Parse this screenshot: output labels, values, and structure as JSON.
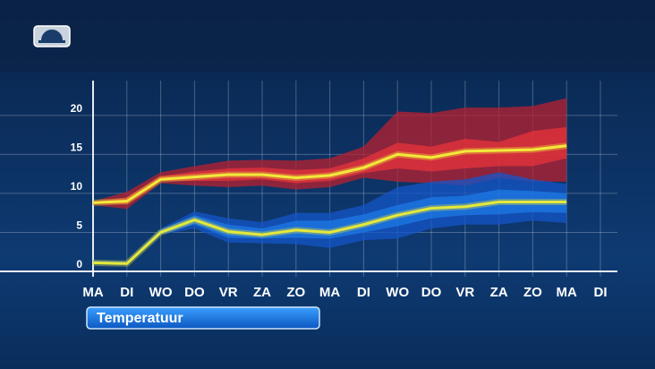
{
  "chart_data": {
    "type": "line",
    "title": "Temperatuur",
    "categories": [
      "MA",
      "DI",
      "WO",
      "DO",
      "VR",
      "ZA",
      "ZO",
      "MA",
      "DI",
      "WO",
      "DO",
      "VR",
      "ZA",
      "ZO",
      "MA",
      "DI"
    ],
    "ylim": [
      0,
      24
    ],
    "yticks": [
      0,
      5,
      10,
      15,
      20
    ],
    "grid": true,
    "bands": [
      {
        "color": "#b8202f",
        "lower": [
          8.5,
          8,
          11.3,
          11,
          10.8,
          11,
          10.5,
          10.8,
          12,
          11.5,
          11.3,
          11,
          12,
          11.5,
          11.5,
          null
        ],
        "upper": [
          9,
          10.2,
          12.7,
          13.5,
          14.2,
          14.3,
          14.2,
          14.5,
          16,
          20.5,
          20.3,
          21,
          21,
          21.2,
          22.2,
          null
        ]
      },
      {
        "color": "#e8333b",
        "lower": [
          8.7,
          8.6,
          11.6,
          11.6,
          11.6,
          11.8,
          11.3,
          11.6,
          12.6,
          13.2,
          12.8,
          13.2,
          13.5,
          13.5,
          14.5,
          null
        ],
        "upper": [
          8.9,
          9.5,
          12.2,
          12.8,
          13.2,
          13.3,
          13,
          13.2,
          14.5,
          16.5,
          16,
          17,
          16.6,
          18,
          18.5,
          null
        ]
      },
      {
        "color": "#1456c8",
        "lower": [
          0.9,
          0.8,
          4.7,
          5.5,
          3.7,
          3.6,
          3.5,
          3,
          4,
          4.2,
          5.5,
          6,
          6,
          6.5,
          6.2,
          null
        ],
        "upper": [
          1.4,
          1.3,
          5.5,
          7.7,
          6.8,
          6.3,
          7.5,
          7.5,
          8.5,
          10.8,
          11.5,
          11.8,
          12.7,
          11.8,
          11.2,
          null
        ]
      },
      {
        "color": "#1e7ae6",
        "lower": [
          1,
          0.9,
          4.8,
          6,
          4.3,
          4.2,
          4.3,
          4.2,
          5,
          5.8,
          6.8,
          7.2,
          7.3,
          7.6,
          7.5,
          null
        ],
        "upper": [
          1.3,
          1.2,
          5.3,
          7.2,
          6,
          5.5,
          6.5,
          6.5,
          7.3,
          8.5,
          9.5,
          9.7,
          10.5,
          10.3,
          10,
          null
        ]
      }
    ],
    "series": [
      {
        "color": "#f2e93a",
        "values": [
          8.8,
          9,
          11.8,
          12.1,
          12.4,
          12.4,
          12,
          12.3,
          13.3,
          15,
          14.6,
          15.4,
          15.5,
          15.6,
          16.1,
          null
        ]
      },
      {
        "color": "#e6e83a",
        "values": [
          1.1,
          1,
          5,
          6.6,
          5.1,
          4.7,
          5.3,
          5,
          6,
          7.2,
          8.1,
          8.3,
          8.9,
          8.9,
          8.9,
          null
        ]
      }
    ]
  }
}
